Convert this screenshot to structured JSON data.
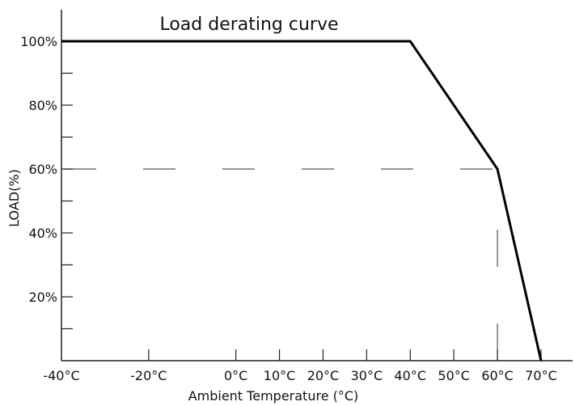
{
  "chart_data": {
    "type": "line",
    "title": "Load derating curve",
    "xlabel": "Ambient Temperature  (°C)",
    "ylabel": "LOAD(%)",
    "xlim": [
      -40,
      70
    ],
    "ylim": [
      0,
      100
    ],
    "x_ticks": [
      -40,
      -20,
      0,
      10,
      20,
      30,
      40,
      50,
      60,
      70
    ],
    "x_tick_labels": [
      "-40°C",
      "-20°C",
      "0°C",
      "10°C",
      "20°C",
      "30°C",
      "40°C",
      "50°C",
      "60°C",
      "70°C"
    ],
    "y_ticks": [
      20,
      40,
      60,
      80,
      100
    ],
    "y_tick_labels": [
      "20%",
      "40%",
      "60%",
      "80%",
      "100%"
    ],
    "y_minor_ticks": [
      10,
      30,
      50,
      70,
      90
    ],
    "grid": false,
    "series": [
      {
        "x": [
          -40,
          40,
          60,
          70
        ],
        "y": [
          100,
          100,
          60,
          0
        ],
        "color": "#000000"
      }
    ],
    "reference_lines": [
      {
        "orientation": "horizontal",
        "value": 60,
        "from": -40,
        "to": 60,
        "style": "dashed"
      },
      {
        "orientation": "vertical",
        "value": 60,
        "from": 0,
        "to": 60,
        "style": "dashed"
      }
    ]
  }
}
